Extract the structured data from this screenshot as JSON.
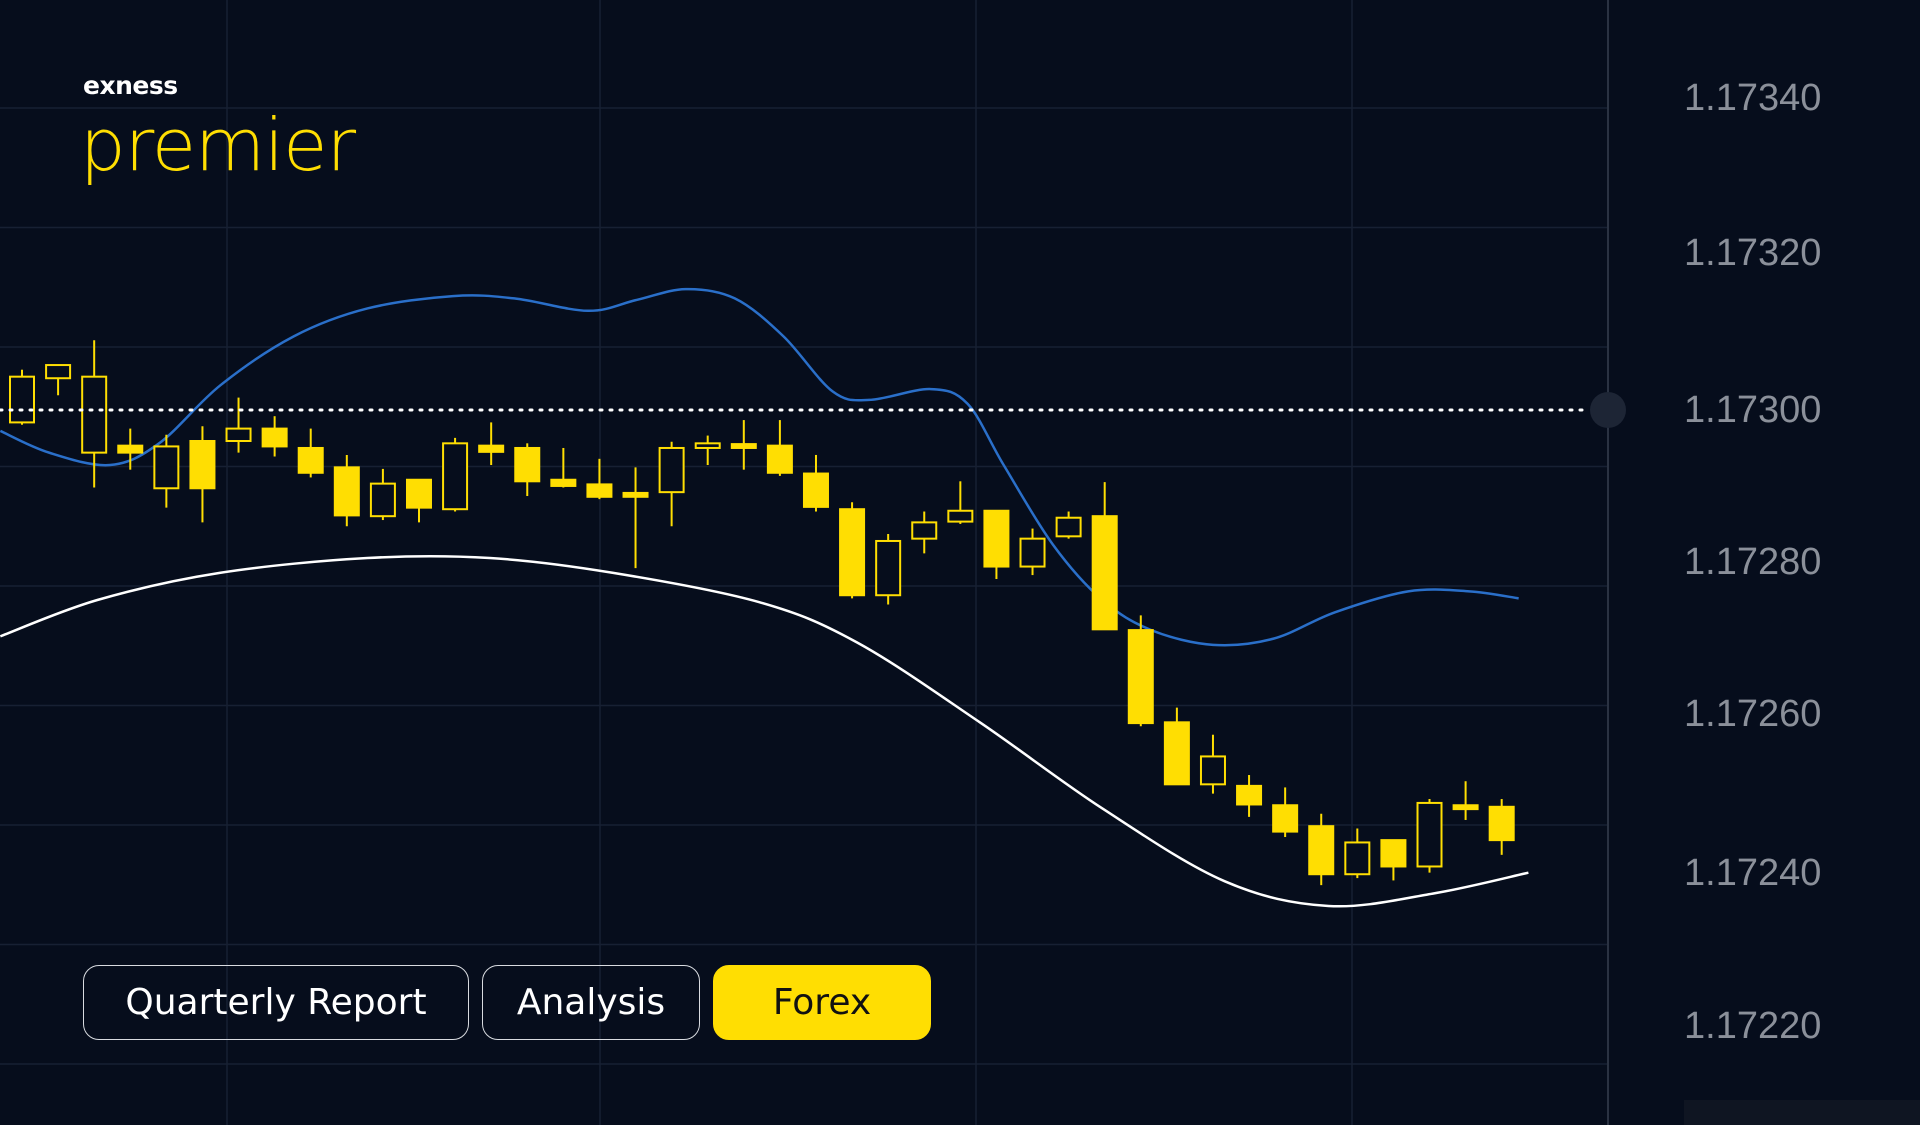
{
  "logo": {
    "brand": "exness",
    "product": "premier"
  },
  "tabs": [
    {
      "label": "Quarterly Report",
      "active": false
    },
    {
      "label": "Analysis",
      "active": false
    },
    {
      "label": "Forex",
      "active": true
    }
  ],
  "colors": {
    "background": "#060d1c",
    "candle": "#ffde02",
    "upper_line": "#2a6fc9",
    "lower_line": "#ffffff",
    "grid": "#172033",
    "axis_text": "#8b909a",
    "active_tab": "#ffde02"
  },
  "chart_data": {
    "type": "candlestick",
    "y_axis": {
      "position": "right",
      "tick_labels": [
        "1.17340",
        "1.17320",
        "1.17300",
        "1.17280",
        "1.17260",
        "1.17240",
        "1.17220"
      ],
      "tick_values": [
        1.1734,
        1.1732,
        1.173,
        1.1728,
        1.1726,
        1.1724,
        1.1722
      ]
    },
    "current_price_line": 1.173,
    "grid": true,
    "candles_ohlc": [
      [
        1.172984,
        1.173052,
        1.172981,
        1.173043
      ],
      [
        1.173041,
        1.173058,
        1.173019,
        1.173058
      ],
      [
        1.172945,
        1.17309,
        1.1729,
        1.173043
      ],
      [
        1.172954,
        1.172976,
        1.172923,
        1.172945
      ],
      [
        1.172899,
        1.172968,
        1.172874,
        1.172953
      ],
      [
        1.17296,
        1.172979,
        1.172855,
        1.172899
      ],
      [
        1.17296,
        1.173016,
        1.172945,
        1.172976
      ],
      [
        1.172976,
        1.172992,
        1.17294,
        1.172953
      ],
      [
        1.172951,
        1.172976,
        1.172913,
        1.172919
      ],
      [
        1.172926,
        1.172942,
        1.17285,
        1.172864
      ],
      [
        1.172863,
        1.172924,
        1.172858,
        1.172905
      ],
      [
        1.17291,
        1.17291,
        1.172855,
        1.172874
      ],
      [
        1.172872,
        1.172964,
        1.172869,
        1.172957
      ],
      [
        1.172954,
        1.172984,
        1.172929,
        1.172946
      ],
      [
        1.172951,
        1.172957,
        1.172889,
        1.172908
      ],
      [
        1.17291,
        1.172951,
        1.1729,
        1.172902
      ],
      [
        1.172904,
        1.172937,
        1.172885,
        1.172888
      ],
      [
        1.172893,
        1.172926,
        1.172796,
        1.172888
      ],
      [
        1.172894,
        1.172959,
        1.17285,
        1.172951
      ],
      [
        1.172951,
        1.172967,
        1.172929,
        1.172957
      ],
      [
        1.172956,
        1.172987,
        1.172923,
        1.172951
      ],
      [
        1.172954,
        1.172987,
        1.172915,
        1.172919
      ],
      [
        1.172918,
        1.172942,
        1.172869,
        1.172875
      ],
      [
        1.172872,
        1.172881,
        1.172757,
        1.172761
      ],
      [
        1.172761,
        1.17284,
        1.172749,
        1.172831
      ],
      [
        1.172834,
        1.172869,
        1.172815,
        1.172855
      ],
      [
        1.172856,
        1.172908,
        1.172853,
        1.17287
      ],
      [
        1.17287,
        1.17287,
        1.172782,
        1.172798
      ],
      [
        1.172798,
        1.172847,
        1.172787,
        1.172834
      ],
      [
        1.172837,
        1.172869,
        1.172834,
        1.172861
      ],
      [
        1.172863,
        1.172907,
        1.172717,
        1.172717
      ],
      [
        1.172716,
        1.172735,
        1.172592,
        1.172596
      ],
      [
        1.172597,
        1.172616,
        1.172517,
        1.172517
      ],
      [
        1.172517,
        1.172581,
        1.172505,
        1.172553
      ],
      [
        1.172515,
        1.172529,
        1.172475,
        1.172491
      ],
      [
        1.17249,
        1.172513,
        1.172449,
        1.172456
      ],
      [
        1.172463,
        1.172479,
        1.172387,
        1.172401
      ],
      [
        1.172401,
        1.17246,
        1.172396,
        1.172442
      ],
      [
        1.172445,
        1.172445,
        1.172393,
        1.172411
      ],
      [
        1.172411,
        1.172498,
        1.172403,
        1.172493
      ],
      [
        1.17249,
        1.172521,
        1.172471,
        1.172485
      ],
      [
        1.172488,
        1.172498,
        1.172426,
        1.172445
      ]
    ],
    "upper_band": [
      [
        -0.6,
        1.172973
      ],
      [
        0.75,
        1.172945
      ],
      [
        2.44,
        1.172929
      ],
      [
        3.8,
        1.172957
      ],
      [
        5.5,
        1.173032
      ],
      [
        7.53,
        1.173095
      ],
      [
        9.57,
        1.173131
      ],
      [
        11.94,
        1.173147
      ],
      [
        13.64,
        1.173144
      ],
      [
        15.68,
        1.173128
      ],
      [
        17.03,
        1.173142
      ],
      [
        18.39,
        1.173156
      ],
      [
        19.75,
        1.173144
      ],
      [
        21.1,
        1.173095
      ],
      [
        22.46,
        1.173024
      ],
      [
        23.48,
        1.173013
      ],
      [
        25.18,
        1.173027
      ],
      [
        26.2,
        1.173008
      ],
      [
        27.2,
        1.172929
      ],
      [
        28.57,
        1.172826
      ],
      [
        29.93,
        1.172755
      ],
      [
        31.29,
        1.172716
      ],
      [
        33.0,
        1.172697
      ],
      [
        34.68,
        1.172705
      ],
      [
        36.38,
        1.172739
      ],
      [
        38.41,
        1.172766
      ],
      [
        40.1,
        1.172766
      ],
      [
        41.47,
        1.172757
      ]
    ],
    "lower_band": [
      [
        -0.6,
        1.172708
      ],
      [
        2.1,
        1.172755
      ],
      [
        5.5,
        1.17279
      ],
      [
        9.57,
        1.172809
      ],
      [
        12.96,
        1.172809
      ],
      [
        16.36,
        1.17279
      ],
      [
        20.43,
        1.172752
      ],
      [
        23.14,
        1.1727
      ],
      [
        26.54,
        1.172597
      ],
      [
        29.93,
        1.172486
      ],
      [
        33.32,
        1.172392
      ],
      [
        36.2,
        1.17236
      ],
      [
        39.09,
        1.172376
      ],
      [
        41.74,
        1.172403
      ]
    ]
  }
}
